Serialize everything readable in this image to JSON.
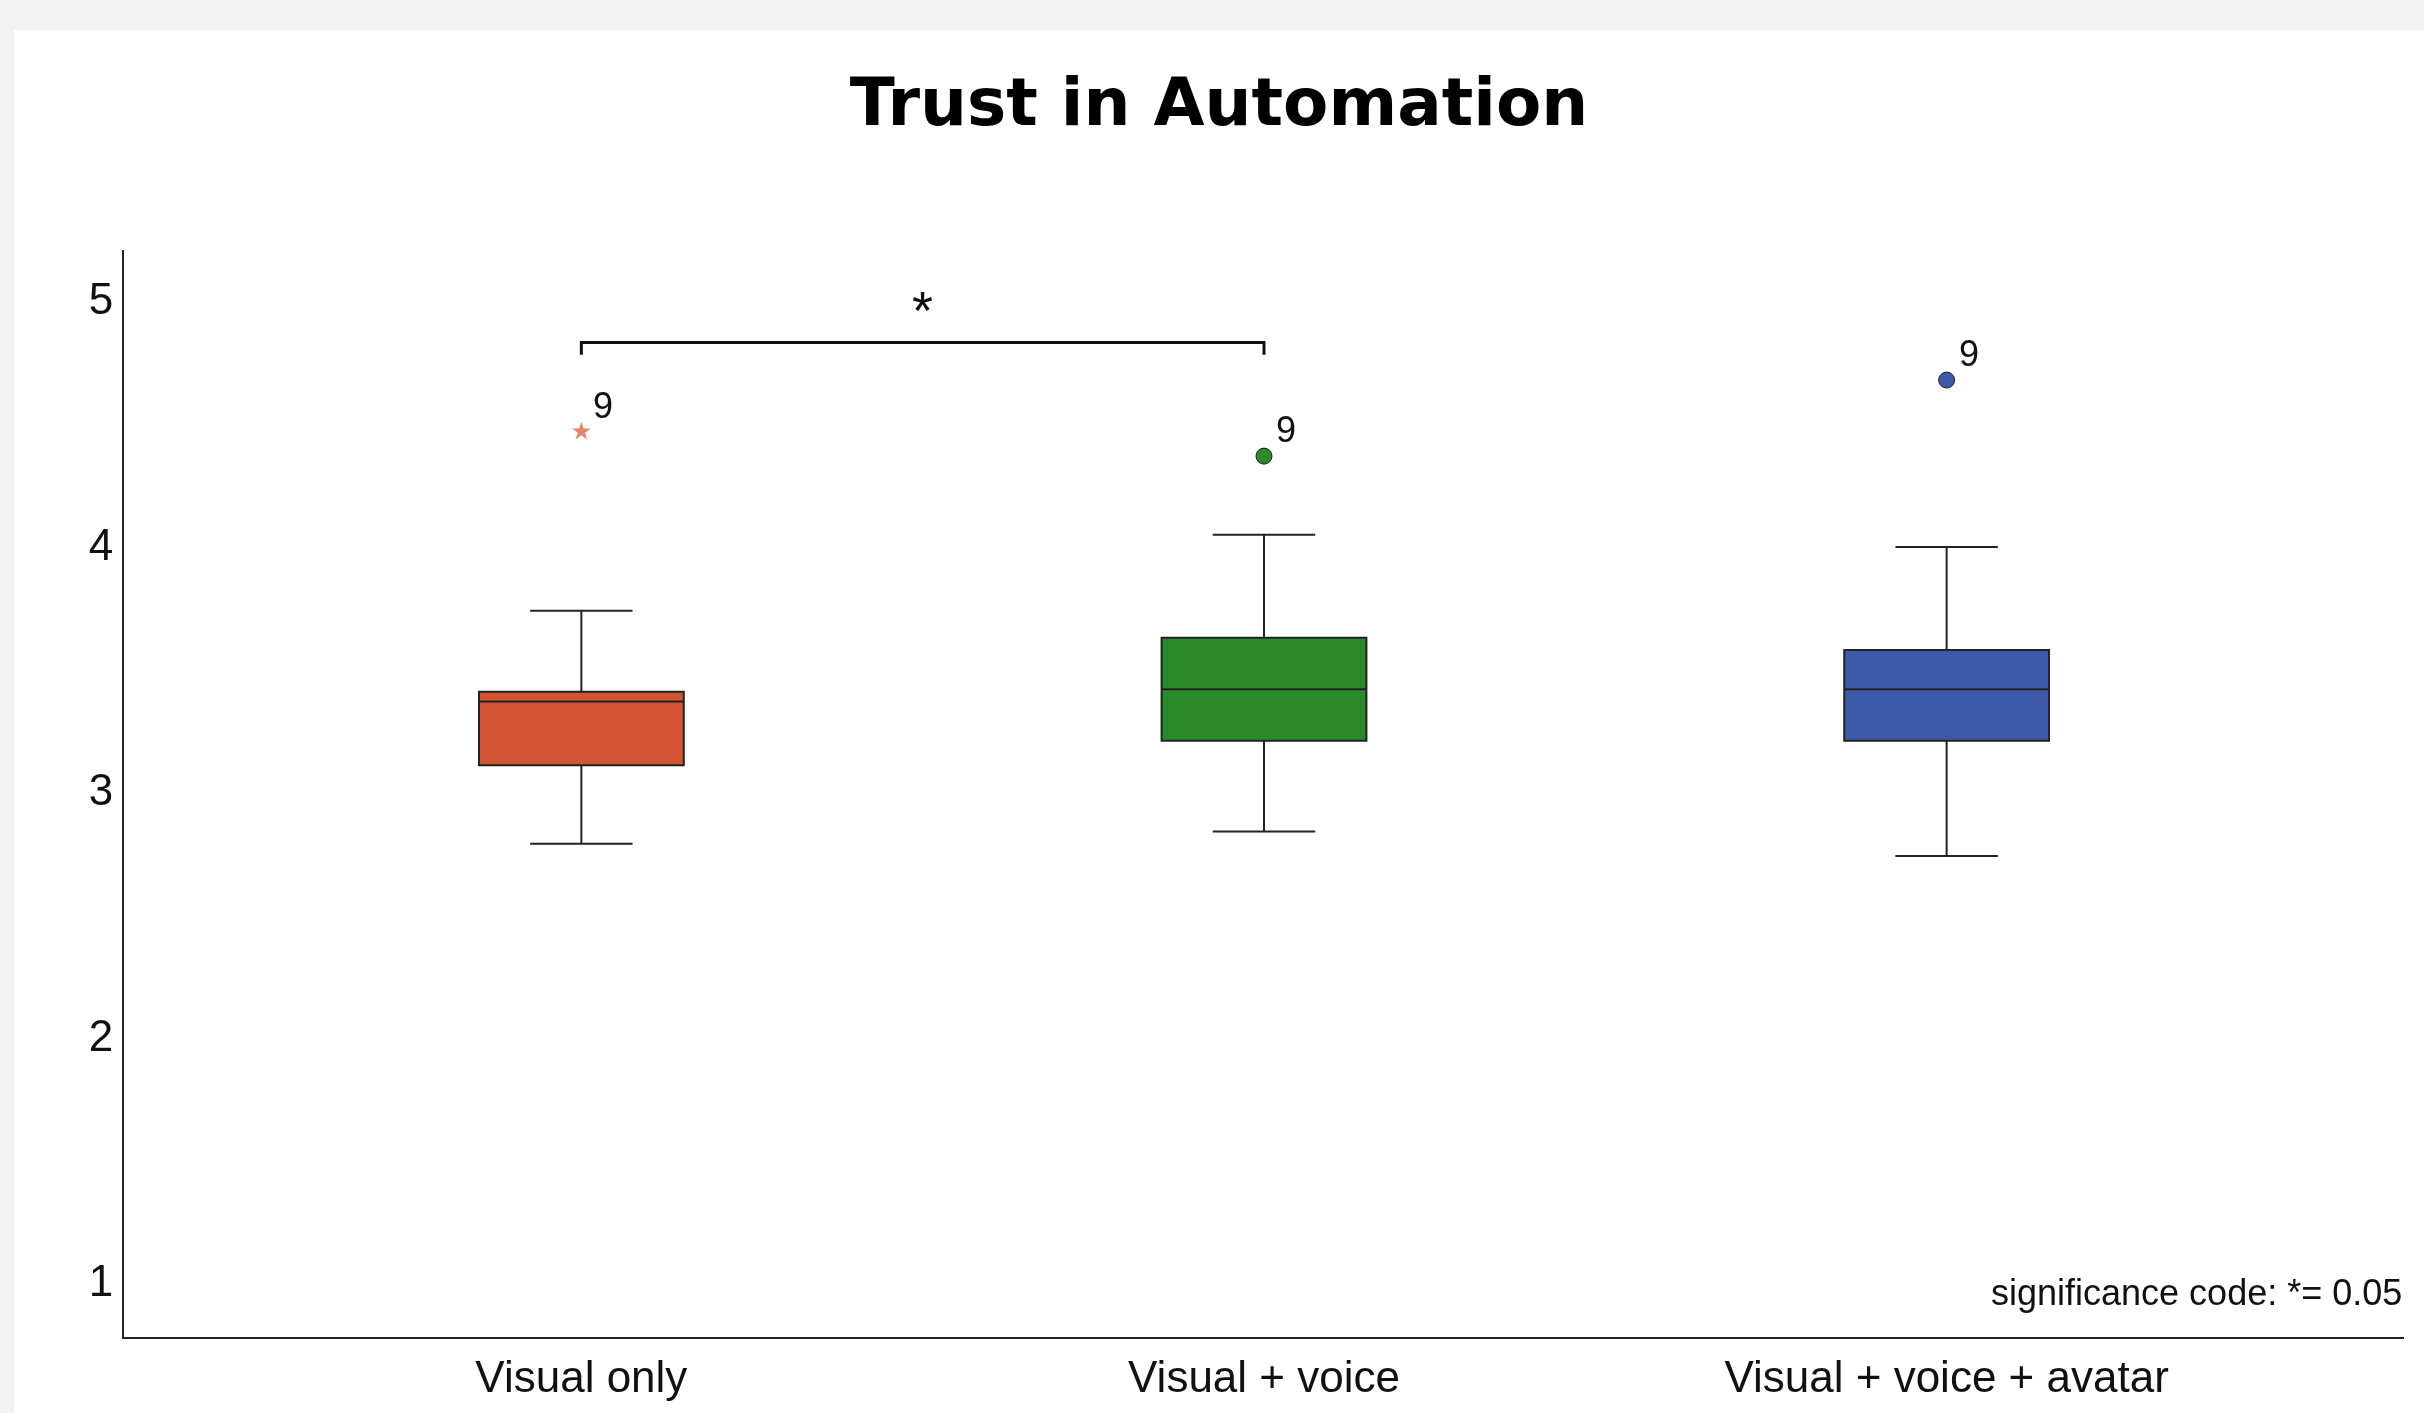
{
  "chart_data": {
    "type": "box",
    "title": "Trust in Automation",
    "categories": [
      "Visual only",
      "Visual + voice",
      "Visual + voice + avatar"
    ],
    "colors": [
      "#d35433",
      "#2a8a2a",
      "#3d58a8"
    ],
    "boxes": [
      {
        "low": 2.78,
        "q1": 3.1,
        "median": 3.36,
        "q3": 3.4,
        "high": 3.73
      },
      {
        "low": 2.83,
        "q1": 3.2,
        "median": 3.41,
        "q3": 3.62,
        "high": 4.04
      },
      {
        "low": 2.73,
        "q1": 3.2,
        "median": 3.41,
        "q3": 3.57,
        "high": 3.99
      }
    ],
    "series": [
      {
        "type": "scatter",
        "marker": "star",
        "color": "#e8826a",
        "x": [
          "Visual only"
        ],
        "values": [
          4.46
        ]
      },
      {
        "type": "scatter",
        "marker": "circle",
        "colors": [
          "#2a8a2a",
          "#3d58a8"
        ],
        "x": [
          "Visual + voice",
          "Visual + voice + avatar"
        ],
        "values": [
          4.36,
          4.67
        ]
      }
    ],
    "ylim": [
      0.77,
      5.2
    ],
    "yticks": [
      1,
      2,
      3,
      4,
      5
    ],
    "grid": false,
    "annotations": [
      {
        "text": "9",
        "x": "Visual only",
        "y": 4.46
      },
      {
        "text": "9",
        "x": "Visual + voice",
        "y": 4.36
      },
      {
        "text": "9",
        "x": "Visual + voice + avatar",
        "y": 4.67
      },
      "*",
      "significance code: *= 0.05"
    ]
  }
}
